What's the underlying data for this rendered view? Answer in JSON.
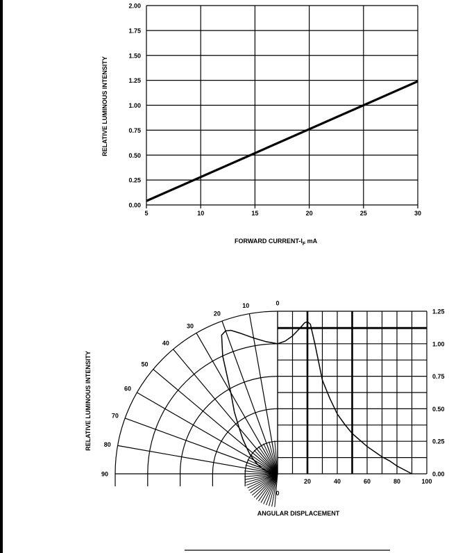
{
  "chart_data": [
    {
      "type": "line",
      "xlabel": "FORWARD CURRENT-I",
      "xlabel_sub": "F",
      "xlabel_unit": " mA",
      "ylabel": "RELATIVE LUMINOUS INTENSITY",
      "x_ticks": [
        "5",
        "10",
        "15",
        "20",
        "25",
        "30"
      ],
      "y_ticks": [
        "0.00",
        "0.25",
        "0.50",
        "0.75",
        "1.00",
        "1.25",
        "1.50",
        "1.75",
        "2.00"
      ],
      "xlim": [
        5,
        30
      ],
      "ylim": [
        0,
        2
      ],
      "grid": true,
      "series": [
        {
          "x": [
            5,
            30
          ],
          "y": [
            0.04,
            1.24
          ]
        }
      ]
    },
    {
      "type": "line",
      "subtype": "polar-radiation-pattern",
      "xlabel": "ANGULAR DISPLACEMENT",
      "ylabel": "RELATIVE LUMINOUS INTENSITY",
      "angle_labels": [
        "0",
        "10",
        "20",
        "30",
        "40",
        "50",
        "60",
        "70",
        "80",
        "90"
      ],
      "bottom_zero": "0",
      "x_ticks": [
        "20",
        "40",
        "60",
        "80",
        "100"
      ],
      "y_ticks": [
        "0.00",
        "0.25",
        "0.50",
        "0.75",
        "1.00",
        "1.25"
      ],
      "xlim": [
        0,
        100
      ],
      "ylim": [
        0,
        1.25
      ],
      "grid": true,
      "series": [
        {
          "angle": [
            0,
            5,
            10,
            15,
            18,
            20,
            22,
            25,
            30,
            35,
            40,
            45,
            50,
            55,
            60,
            65,
            70,
            75,
            80,
            85,
            90
          ],
          "intensity": [
            1.0,
            1.02,
            1.06,
            1.12,
            1.16,
            1.17,
            1.15,
            1.0,
            0.72,
            0.58,
            0.46,
            0.38,
            0.31,
            0.26,
            0.21,
            0.17,
            0.13,
            0.1,
            0.06,
            0.03,
            0.0
          ]
        }
      ]
    }
  ]
}
